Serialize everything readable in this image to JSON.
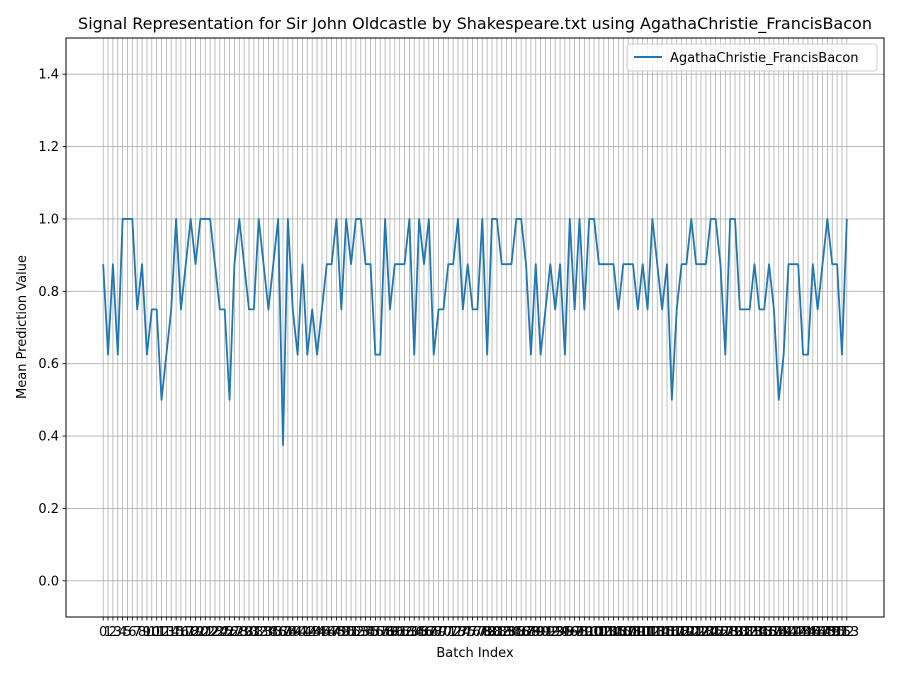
{
  "chart_data": {
    "type": "line",
    "title": "Signal Representation for Sir John Oldcastle by Shakespeare.txt using AgathaChristie_FrancisBacon",
    "xlabel": "Batch Index",
    "ylabel": "Mean Prediction Value",
    "ylim": [
      -0.1,
      1.5
    ],
    "yticks": [
      0.0,
      0.2,
      0.4,
      0.6,
      0.8,
      1.0,
      1.2,
      1.4
    ],
    "grid": true,
    "legend_position": "upper right",
    "series": [
      {
        "name": "AgathaChristie_FrancisBacon",
        "color": "#1f77b4",
        "x": [
          0,
          1,
          2,
          3,
          4,
          5,
          6,
          7,
          8,
          9,
          10,
          11,
          12,
          13,
          14,
          15,
          16,
          17,
          18,
          19,
          20,
          21,
          22,
          23,
          24,
          25,
          26,
          27,
          28,
          29,
          30,
          31,
          32,
          33,
          34,
          35,
          36,
          37,
          38,
          39,
          40,
          41,
          42,
          43,
          44,
          45,
          46,
          47,
          48,
          49,
          50,
          51,
          52,
          53,
          54,
          55,
          56,
          57,
          58,
          59,
          60,
          61,
          62,
          63,
          64,
          65,
          66,
          67,
          68,
          69,
          70,
          71,
          72,
          73,
          74,
          75,
          76,
          77,
          78,
          79,
          80,
          81,
          82,
          83,
          84,
          85,
          86,
          87,
          88,
          89,
          90,
          91,
          92,
          93,
          94,
          95,
          96,
          97,
          98,
          99,
          100,
          101,
          102,
          103,
          104,
          105,
          106,
          107,
          108,
          109,
          110,
          111,
          112,
          113,
          114,
          115,
          116,
          117,
          118,
          119,
          120,
          121,
          122,
          123,
          124,
          125,
          126,
          127,
          128,
          129,
          130,
          131,
          132,
          133,
          134,
          135,
          136,
          137,
          138,
          139,
          140,
          141,
          142,
          143,
          144,
          145,
          146,
          147,
          148,
          149,
          150,
          151,
          152,
          153
        ],
        "values": [
          0.875,
          0.625,
          0.875,
          0.625,
          1.0,
          1.0,
          1.0,
          0.75,
          0.875,
          0.625,
          0.75,
          0.75,
          0.5,
          0.625,
          0.75,
          1.0,
          0.75,
          0.875,
          1.0,
          0.875,
          1.0,
          1.0,
          1.0,
          0.875,
          0.75,
          0.75,
          0.5,
          0.875,
          1.0,
          0.875,
          0.75,
          0.75,
          1.0,
          0.875,
          0.75,
          0.875,
          1.0,
          0.375,
          1.0,
          0.75,
          0.625,
          0.875,
          0.625,
          0.75,
          0.625,
          0.75,
          0.875,
          0.875,
          1.0,
          0.75,
          1.0,
          0.875,
          1.0,
          1.0,
          0.875,
          0.875,
          0.625,
          0.625,
          1.0,
          0.75,
          0.875,
          0.875,
          0.875,
          1.0,
          0.625,
          1.0,
          0.875,
          1.0,
          0.625,
          0.75,
          0.75,
          0.875,
          0.875,
          1.0,
          0.75,
          0.875,
          0.75,
          0.75,
          1.0,
          0.625,
          1.0,
          1.0,
          0.875,
          0.875,
          0.875,
          1.0,
          1.0,
          0.875,
          0.625,
          0.875,
          0.625,
          0.75,
          0.875,
          0.75,
          0.875,
          0.625,
          1.0,
          0.75,
          1.0,
          0.75,
          1.0,
          1.0,
          0.875,
          0.875,
          0.875,
          0.875,
          0.75,
          0.875,
          0.875,
          0.875,
          0.75,
          0.875,
          0.75,
          1.0,
          0.875,
          0.75,
          0.875,
          0.5,
          0.75,
          0.875,
          0.875,
          1.0,
          0.875,
          0.875,
          0.875,
          1.0,
          1.0,
          0.875,
          0.625,
          1.0,
          1.0,
          0.75,
          0.75,
          0.75,
          0.875,
          0.75,
          0.75,
          0.875,
          0.75,
          0.5,
          0.625,
          0.875,
          0.875,
          0.875,
          0.625,
          0.625,
          0.875,
          0.75,
          0.875,
          1.0,
          0.875,
          0.875,
          0.625,
          1.0
        ]
      }
    ]
  }
}
